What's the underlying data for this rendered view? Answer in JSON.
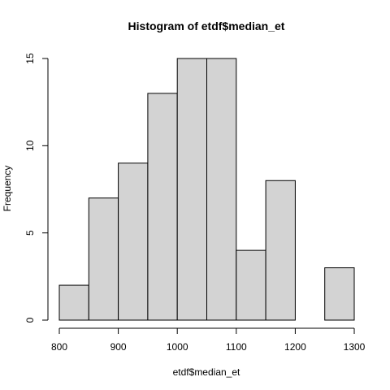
{
  "chart_data": {
    "type": "histogram",
    "title": "Histogram of etdf$median_et",
    "xlabel": "etdf$median_et",
    "ylabel": "Frequency",
    "bin_edges": [
      800,
      850,
      900,
      950,
      1000,
      1050,
      1100,
      1150,
      1200,
      1250,
      1300
    ],
    "values": [
      2,
      7,
      9,
      13,
      15,
      15,
      4,
      8,
      0,
      3
    ],
    "xlim": [
      800,
      1300
    ],
    "ylim": [
      0,
      15
    ],
    "x_ticks": [
      800,
      900,
      1000,
      1100,
      1200,
      1300
    ],
    "y_ticks": [
      0,
      5,
      10,
      15
    ],
    "bar_fill": "#d3d3d3",
    "bar_stroke": "#000000",
    "grid": false
  }
}
